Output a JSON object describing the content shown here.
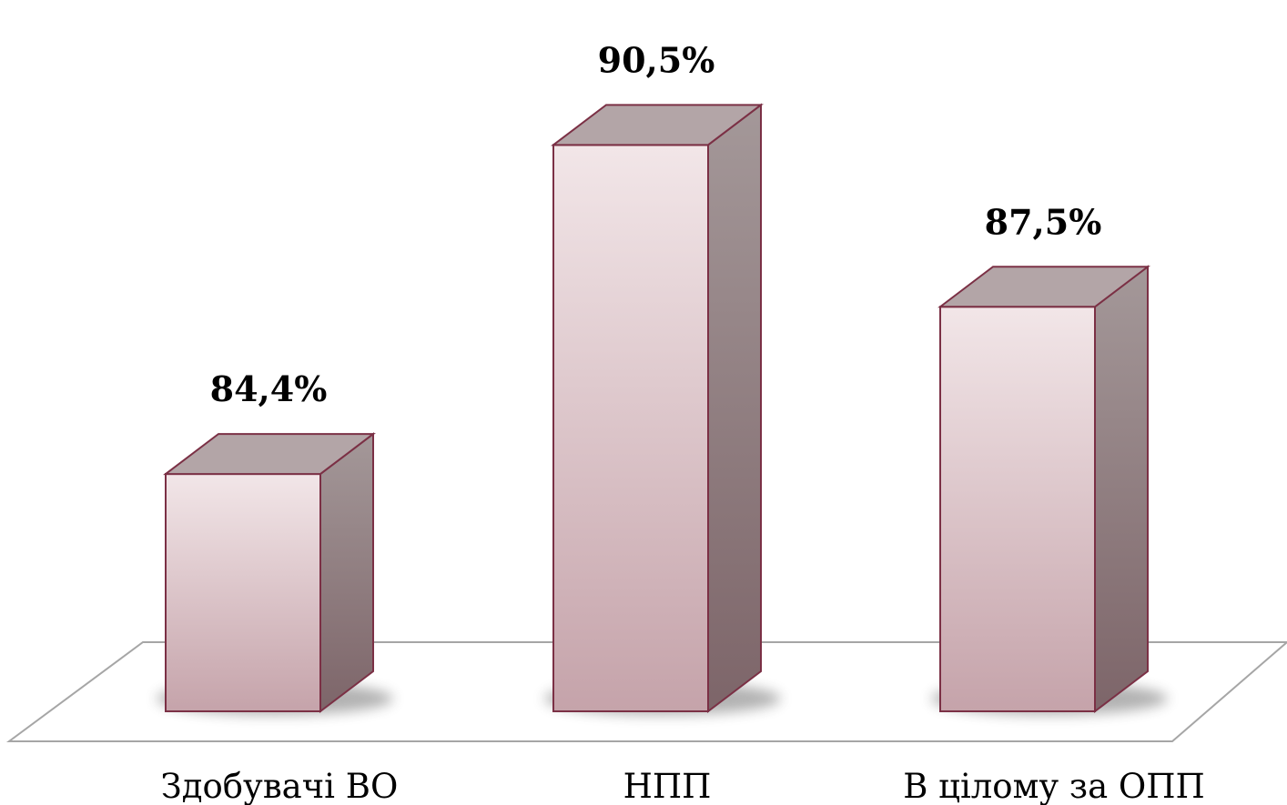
{
  "chart_data": {
    "type": "bar",
    "categories": [
      "Здобувачі ВО",
      "НПП",
      "В цілому за ОПП"
    ],
    "values": [
      84.4,
      90.5,
      87.5
    ],
    "data_labels": [
      "84,4%",
      "90,5%",
      "87,5%"
    ],
    "title": "",
    "xlabel": "",
    "ylabel": "",
    "grid": false,
    "legend": "none",
    "style": "3d-column",
    "colors": {
      "front_top": "#f2e6e8",
      "front_bottom": "#c5a3aa",
      "side_top": "#a49899",
      "side_bottom": "#7d6569",
      "top_face": "#b3a5a7",
      "edge": "#7b3045",
      "floor_line": "#a6a6a6"
    }
  }
}
